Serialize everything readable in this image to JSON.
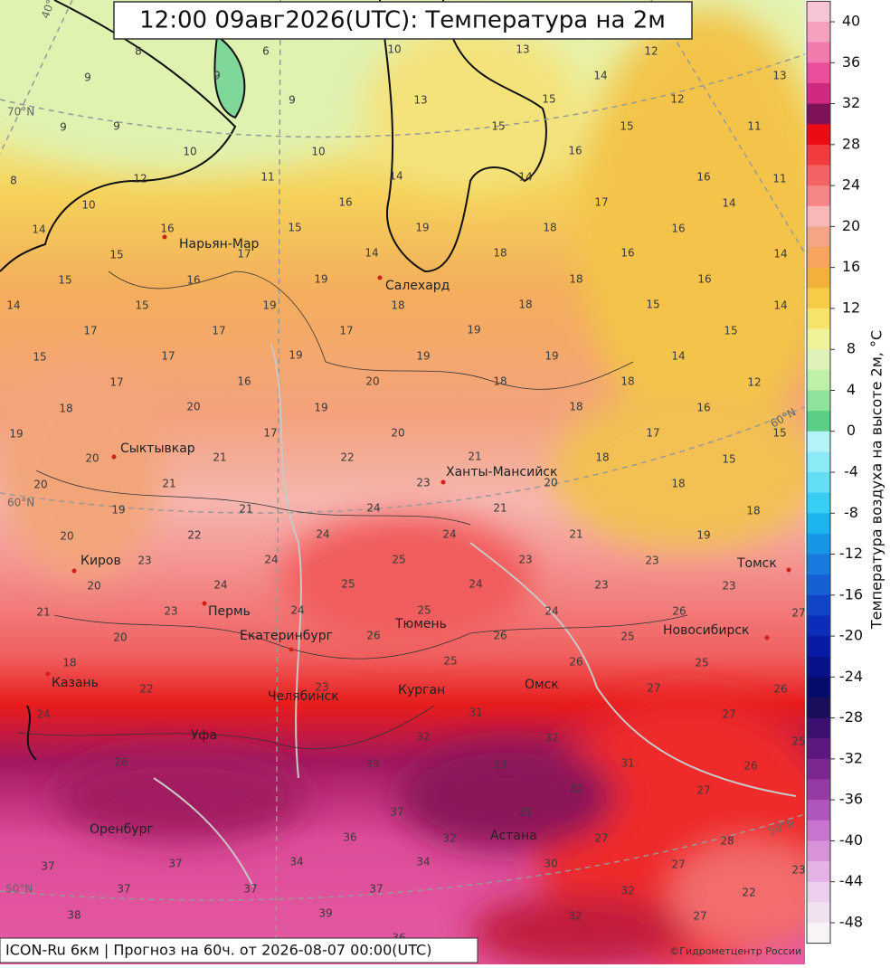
{
  "title": "12:00 09авг2026(UTC): Температура на 2м",
  "footer": "ICON-Ru 6км | Прогноз на  60ч. от 2026-08-07 00:00(UTC)",
  "credit": "©Гидрометцентр России",
  "colorbar": {
    "label": "Температура воздуха на высоте 2м, °C",
    "lim": [
      -50,
      42
    ],
    "ticks": [
      40,
      36,
      32,
      28,
      24,
      20,
      16,
      12,
      8,
      4,
      0,
      -4,
      -8,
      -12,
      -16,
      -20,
      -24,
      -28,
      -32,
      -36,
      -40,
      -44,
      -48
    ],
    "colors": [
      "#f7c5d5",
      "#f6a0bf",
      "#f27aad",
      "#ea4d99",
      "#cf2a80",
      "#7d1356",
      "#ea0c12",
      "#f23b3d",
      "#f46364",
      "#f68585",
      "#f8b8b8",
      "#f5a585",
      "#f6a45e",
      "#f2b23a",
      "#f6cb45",
      "#f7e36a",
      "#f1f29a",
      "#dff3b8",
      "#bff0a8",
      "#8fe39a",
      "#5ccf86",
      "#b5f3f8",
      "#8ceaf6",
      "#63def5",
      "#38cdf2",
      "#1bb4ee",
      "#1596e6",
      "#167ade",
      "#1560d4",
      "#1145c8",
      "#0c2dba",
      "#081ba5",
      "#06118a",
      "#060a6a",
      "#1a0d5a",
      "#3b1070",
      "#5d1780",
      "#7a2792",
      "#963aa6",
      "#b055bb",
      "#c873cd",
      "#d892da",
      "#e4b2e6",
      "#ecceed",
      "#f1e2f1",
      "#f7f3f7"
    ]
  },
  "cities": [
    "Нарьян-Мар",
    "Салехард",
    "Сыктывкар",
    "Ханты-Мансийск",
    "Киров",
    "Пермь",
    "Екатеринбург",
    "Тюмень",
    "Томск",
    "Новосибирск",
    "Казань",
    "Челябинск",
    "Курган",
    "Омск",
    "Уфа",
    "Оренбург",
    "Астана"
  ],
  "grid_labels": [
    "70°N",
    "60°N",
    "60°N",
    "50°N",
    "50°N",
    "40°E"
  ],
  "temperature_labels": [
    [
      8,
      6,
      10,
      13,
      12,
      9,
      9,
      9,
      13,
      15,
      14,
      12,
      13
    ],
    [
      9,
      9,
      10,
      10,
      11,
      14,
      15,
      15,
      11,
      16,
      16,
      11,
      8,
      12,
      10,
      14
    ],
    [
      16,
      16,
      15,
      19,
      18,
      17,
      16,
      14,
      14,
      17,
      15,
      14,
      18,
      16,
      14
    ],
    [
      15,
      16,
      19,
      18,
      16,
      15,
      19,
      18,
      18,
      15,
      14,
      14
    ],
    [
      17,
      17,
      17,
      19,
      15,
      15,
      17,
      19,
      19,
      19,
      14
    ],
    [
      17,
      16,
      20,
      18,
      18,
      12,
      18,
      20,
      19,
      18,
      16
    ],
    [
      19,
      17,
      20,
      17,
      15,
      20,
      21,
      22,
      21,
      18,
      15
    ],
    [
      21,
      23,
      20,
      18,
      20,
      19,
      21,
      24,
      21,
      18
    ],
    [
      22,
      24,
      24,
      21,
      19,
      20,
      23,
      24,
      25,
      23,
      23
    ],
    [
      20,
      24,
      25,
      24,
      23,
      23,
      21,
      23,
      24,
      25,
      24,
      26
    ],
    [
      20,
      26,
      26,
      25,
      18,
      25,
      26,
      25,
      27
    ],
    [
      22,
      23,
      27,
      26,
      24,
      31,
      27,
      32,
      32
    ],
    [
      26,
      33,
      33,
      31,
      26,
      32,
      27,
      37,
      31,
      25
    ],
    [
      36,
      32,
      27,
      28,
      34,
      34,
      37,
      37,
      30,
      27,
      23
    ],
    [
      37,
      37,
      37,
      32,
      22,
      38,
      39,
      32,
      27,
      36
    ]
  ]
}
